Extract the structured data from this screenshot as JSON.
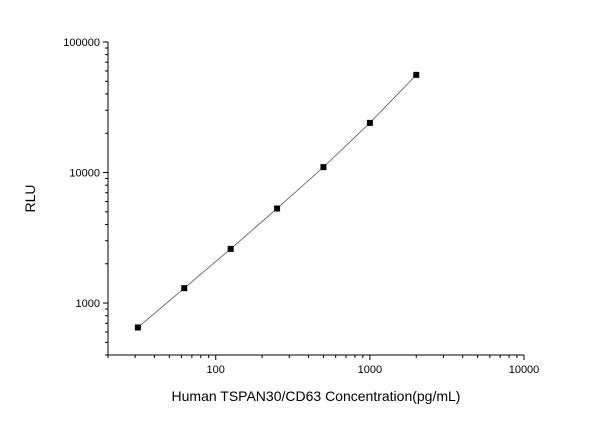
{
  "chart_data": {
    "type": "scatter",
    "title": "",
    "xlabel": "Human TSPAN30/CD63 Concentration(pg/mL)",
    "ylabel": "RLU",
    "x_scale": "log",
    "y_scale": "log",
    "xlim": [
      20,
      10000
    ],
    "ylim": [
      400,
      100000
    ],
    "x_ticks": [
      {
        "value": 100,
        "label": "100"
      },
      {
        "value": 1000,
        "label": "1000"
      },
      {
        "value": 10000,
        "label": "10000"
      }
    ],
    "y_ticks": [
      {
        "value": 1000,
        "label": "1000"
      },
      {
        "value": 10000,
        "label": "10000"
      },
      {
        "value": 100000,
        "label": "100000"
      }
    ],
    "grid": false,
    "legend": "none",
    "series": [
      {
        "points": [
          {
            "x": 31.25,
            "y": 650
          },
          {
            "x": 62.5,
            "y": 1300
          },
          {
            "x": 125,
            "y": 2600
          },
          {
            "x": 250,
            "y": 5300
          },
          {
            "x": 500,
            "y": 11000
          },
          {
            "x": 1000,
            "y": 24000
          },
          {
            "x": 2000,
            "y": 56000
          }
        ],
        "marker": "square",
        "marker_color": "#000000",
        "line": "fit-curve",
        "line_color": "#555555"
      }
    ]
  }
}
